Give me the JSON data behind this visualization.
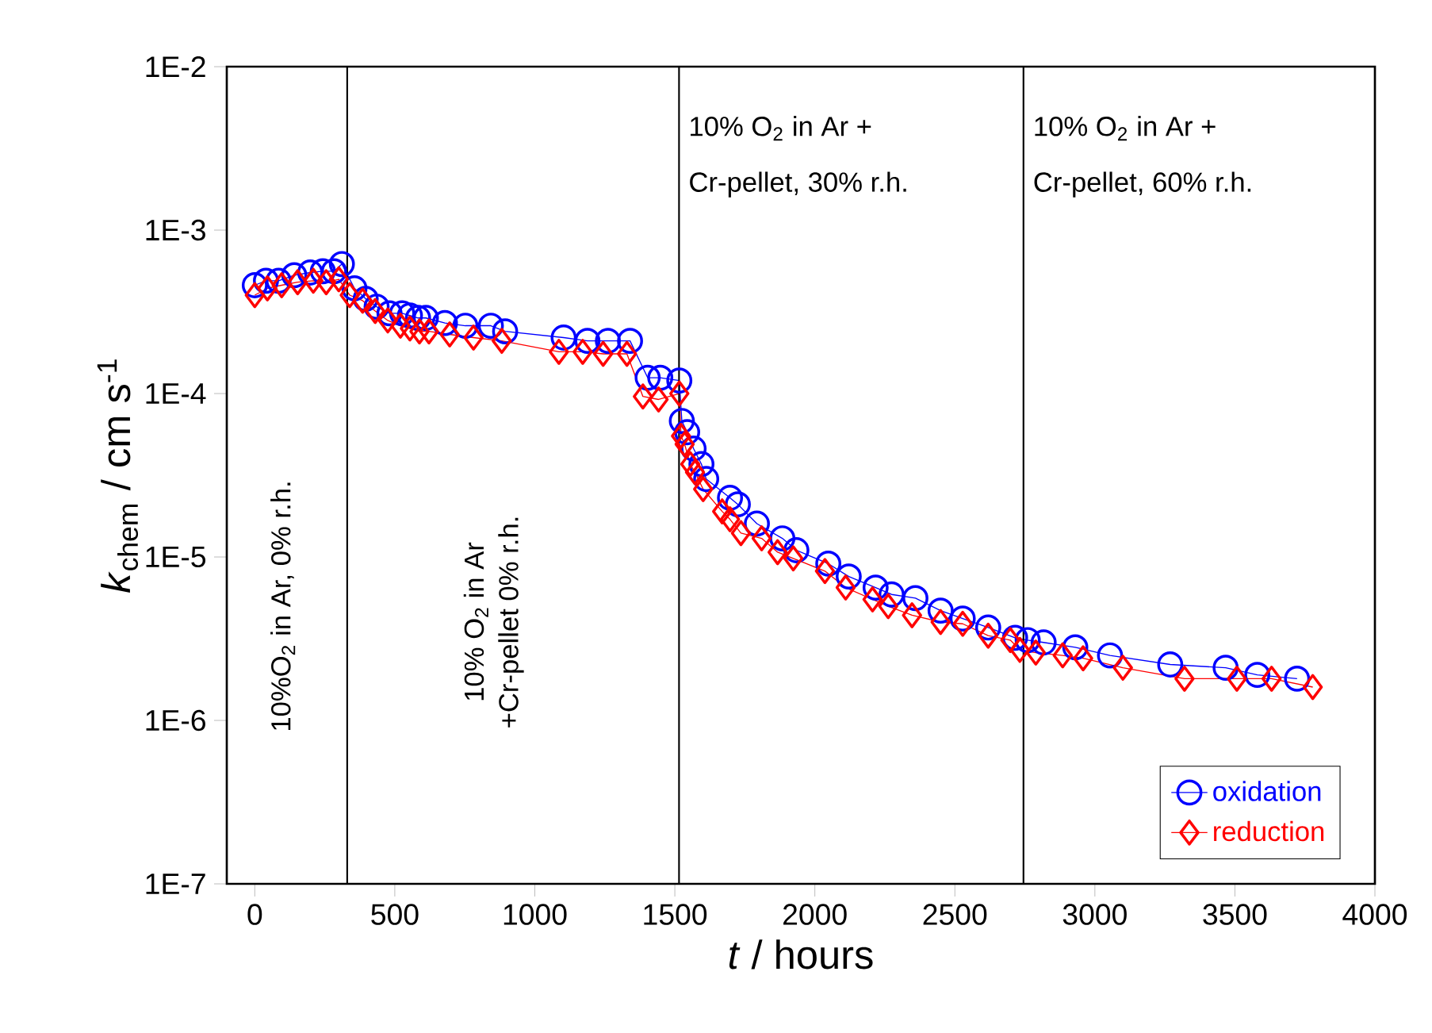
{
  "chart_data": {
    "type": "line",
    "xlabel": "*t* / hours",
    "ylabel": "*k*$_{chem}$ / cm s$^{-1}$",
    "xlim": [
      -100,
      4000
    ],
    "xticks": [
      0,
      500,
      1000,
      1500,
      2000,
      2500,
      3000,
      3500,
      4000
    ],
    "ylim": [
      1e-07,
      0.01
    ],
    "log": "y",
    "yticks": [
      {
        "value": 1e-07,
        "label": "1E-7"
      },
      {
        "value": 1e-06,
        "label": "1E-6"
      },
      {
        "value": 1e-05,
        "label": "1E-5"
      },
      {
        "value": 0.0001,
        "label": "1E-4"
      },
      {
        "value": 0.001,
        "label": "1E-3"
      },
      {
        "value": 0.01,
        "label": "1E-2"
      }
    ],
    "grid": false,
    "legend": "bottom right",
    "line_style": "solid",
    "series": [
      {
        "name": "oxidation",
        "color": "#0000ff",
        "marker": "circle",
        "x": [
          0,
          40,
          85,
          141,
          198,
          243,
          283,
          311,
          356,
          396,
          435,
          481,
          526,
          554,
          583,
          611,
          679,
          752,
          843,
          894,
          1103,
          1188,
          1261,
          1340,
          1403,
          1448,
          1516,
          1525,
          1544,
          1567,
          1595,
          1612,
          1697,
          1725,
          1793,
          1884,
          1934,
          2048,
          2121,
          2217,
          2274,
          2359,
          2449,
          2528,
          2619,
          2715,
          2760,
          2817,
          2930,
          3054,
          3269,
          3467,
          3580,
          3722
        ],
        "values": [
          0.00046,
          0.00049,
          0.00049,
          0.00053,
          0.00055,
          0.00056,
          0.00056,
          0.00062,
          0.00044,
          0.00038,
          0.00034,
          0.00031,
          0.00031,
          0.0003,
          0.00029,
          0.00029,
          0.00027,
          0.00026,
          0.00026,
          0.00024,
          0.00022,
          0.00021,
          0.00021,
          0.00021,
          0.000125,
          0.000125,
          0.00012,
          6.8e-05,
          5.8e-05,
          4.6e-05,
          3.7e-05,
          3e-05,
          2.3e-05,
          2.1e-05,
          1.6e-05,
          1.3e-05,
          1.1e-05,
          9.1e-06,
          7.6e-06,
          6.5e-06,
          5.9e-06,
          5.6e-06,
          4.7e-06,
          4.2e-06,
          3.7e-06,
          3.2e-06,
          3.1e-06,
          3e-06,
          2.8e-06,
          2.5e-06,
          2.2e-06,
          2.1e-06,
          1.9e-06,
          1.8e-06
        ]
      },
      {
        "name": "reduction",
        "color": "#ff0000",
        "marker": "diamond",
        "x": [
          0,
          45,
          96,
          153,
          209,
          255,
          300,
          339,
          385,
          430,
          475,
          520,
          554,
          588,
          622,
          696,
          781,
          882,
          1086,
          1171,
          1244,
          1329,
          1386,
          1442,
          1516,
          1522,
          1535,
          1555,
          1572,
          1601,
          1669,
          1697,
          1736,
          1810,
          1867,
          1923,
          2036,
          2110,
          2206,
          2262,
          2347,
          2449,
          2528,
          2619,
          2698,
          2732,
          2789,
          2885,
          2958,
          3100,
          3320,
          3507,
          3631,
          3778
        ],
        "values": [
          0.0004,
          0.00044,
          0.00046,
          0.00048,
          0.00049,
          0.00048,
          0.0005,
          0.0004,
          0.00037,
          0.00032,
          0.00028,
          0.00026,
          0.00025,
          0.00024,
          0.00024,
          0.00023,
          0.00022,
          0.00021,
          0.00018,
          0.00018,
          0.000175,
          0.000175,
          9.6e-05,
          9.2e-05,
          0.0001,
          5.5e-05,
          4.9e-05,
          3.7e-05,
          3.3e-05,
          2.6e-05,
          1.9e-05,
          1.7e-05,
          1.4e-05,
          1.3e-05,
          1.07e-05,
          9.8e-06,
          8.2e-06,
          6.5e-06,
          5.5e-06,
          5e-06,
          4.4e-06,
          4e-06,
          3.9e-06,
          3.3e-06,
          3.1e-06,
          2.7e-06,
          2.6e-06,
          2.5e-06,
          2.4e-06,
          2.1e-06,
          1.8e-06,
          1.8e-06,
          1.8e-06,
          1.6e-06
        ]
      }
    ],
    "ref_lines": [
      {
        "axis": "x",
        "value": 330,
        "color": "#000000"
      },
      {
        "axis": "x",
        "value": 1515,
        "color": "#000000"
      },
      {
        "axis": "x",
        "value": 2745,
        "color": "#000000"
      }
    ],
    "annotations": [
      "10%O$_{2}$ in Ar, 0% r.h.",
      "10% O$_{2}$ in Ar",
      "+Cr-pellet 0% r.h.",
      "10% O$_{2}$ in Ar +",
      "Cr-pellet, 30% r.h.",
      "10% O$_{2}$ in Ar +",
      "Cr-pellet, 60% r.h."
    ]
  }
}
